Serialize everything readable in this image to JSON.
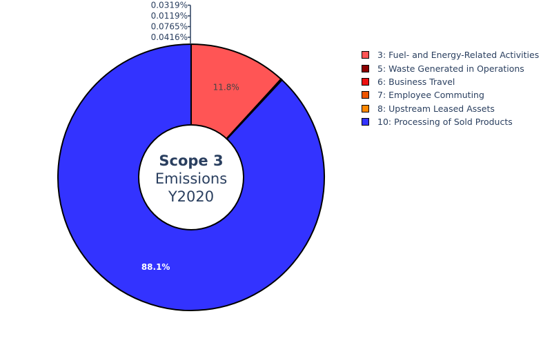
{
  "chart_data": {
    "type": "pie",
    "hole": true,
    "center_text": {
      "line1": "Scope 3",
      "line2": "Emissions",
      "line3": "Y2020"
    },
    "slices": [
      {
        "label": "3: Fuel- and Energy-Related Activities",
        "value": 11.8,
        "text": "11.8%",
        "color": "#ff5555"
      },
      {
        "label": "5: Waste Generated in Operations",
        "value": 0.0319,
        "text": "0.0319%",
        "color": "#8b0000"
      },
      {
        "label": "6: Business Travel",
        "value": 0.0119,
        "text": "0.0119%",
        "color": "#ee1111"
      },
      {
        "label": "7: Employee Commuting",
        "value": 0.0765,
        "text": "0.0765%",
        "color": "#ee5500"
      },
      {
        "label": "8: Upstream Leased Assets",
        "value": 0.0416,
        "text": "0.0416%",
        "color": "#ff8800"
      },
      {
        "label": "10: Processing of Sold Products",
        "value": 88.1,
        "text": "88.1%",
        "color": "#3333ff"
      }
    ],
    "legend_position": "top-right"
  }
}
